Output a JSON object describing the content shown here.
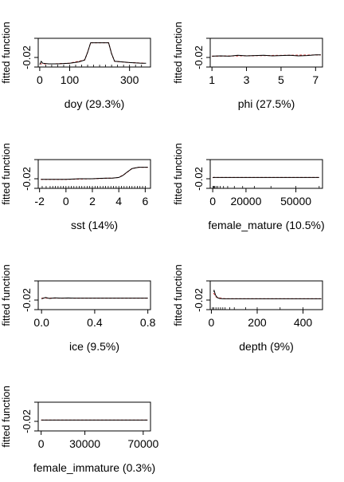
{
  "chart_data": [
    {
      "type": "line",
      "title": "",
      "xlabel": "doy  (29.3%)",
      "ylabel": "fitted function",
      "xlim": [
        -5,
        370
      ],
      "ylim": [
        -0.035,
        0.01
      ],
      "xticks": [
        0,
        100,
        300
      ],
      "yticks": [
        "-0.02"
      ],
      "ytick_values": [
        -0.02
      ],
      "rug": [
        20,
        40,
        60,
        80,
        100,
        120,
        140,
        160,
        180,
        200,
        220,
        240,
        260,
        280,
        300,
        320,
        340
      ],
      "series": [
        {
          "role": "smoothed",
          "color": "#cc3333",
          "dashed": true,
          "x": [
            0,
            50,
            100,
            150,
            160,
            170,
            230,
            240,
            250,
            300,
            350
          ],
          "y": [
            -0.03,
            -0.03,
            -0.029,
            -0.024,
            -0.012,
            0.003,
            0.003,
            -0.014,
            -0.026,
            -0.028,
            -0.029
          ]
        },
        {
          "role": "fitted",
          "color": "#000000",
          "x": [
            0,
            5,
            10,
            30,
            60,
            100,
            130,
            150,
            160,
            170,
            230,
            240,
            250,
            300,
            340,
            355
          ],
          "y": [
            -0.031,
            -0.026,
            -0.029,
            -0.03,
            -0.03,
            -0.029,
            -0.027,
            -0.024,
            -0.012,
            0.003,
            0.003,
            -0.014,
            -0.026,
            -0.028,
            -0.029,
            -0.029
          ]
        }
      ]
    },
    {
      "type": "line",
      "title": "",
      "xlabel": "phi  (27.5%)",
      "ylabel": "fitted function",
      "xlim": [
        0.9,
        7.4
      ],
      "ylim": [
        -0.035,
        0.01
      ],
      "xticks": [
        1,
        3,
        5,
        7
      ],
      "yticks": [
        "-0.02"
      ],
      "ytick_values": [
        -0.02
      ],
      "rug": [],
      "series": [
        {
          "role": "smoothed",
          "color": "#cc3333",
          "dashed": true,
          "x": [
            1,
            7.3
          ],
          "y": [
            -0.018,
            -0.016
          ]
        },
        {
          "role": "fitted",
          "color": "#000000",
          "x": [
            1,
            1.5,
            2,
            2.5,
            3,
            3.5,
            4,
            4.5,
            5,
            5.5,
            6,
            6.5,
            7,
            7.3
          ],
          "y": [
            -0.018,
            -0.0175,
            -0.018,
            -0.0165,
            -0.0175,
            -0.017,
            -0.0165,
            -0.0175,
            -0.017,
            -0.0165,
            -0.0175,
            -0.017,
            -0.016,
            -0.016
          ]
        }
      ]
    },
    {
      "type": "line",
      "title": "",
      "xlabel": "sst  (14%)",
      "ylabel": "fitted function",
      "xlim": [
        -2.1,
        6.4
      ],
      "ylim": [
        -0.035,
        0.01
      ],
      "xticks": [
        -2,
        0,
        2,
        4,
        6
      ],
      "yticks": [
        "-0.02"
      ],
      "ytick_values": [
        -0.02
      ],
      "rug": [
        -1.8,
        -1.5,
        -1.2,
        -1.0,
        -0.8,
        -0.6,
        -0.4,
        -0.2,
        0.0,
        0.2,
        0.4,
        0.6,
        0.8,
        1.0,
        1.2,
        1.4,
        1.6,
        1.8,
        2.0,
        2.2,
        2.4,
        2.6,
        2.8,
        3.0,
        3.2,
        3.4,
        3.6,
        3.8,
        4.0,
        4.2,
        4.4,
        4.6,
        4.8,
        5.0,
        5.2,
        5.4,
        5.6,
        5.8,
        6.0
      ],
      "series": [
        {
          "role": "smoothed",
          "color": "#cc3333",
          "dashed": true,
          "x": [
            -1.9,
            0,
            2,
            3.5,
            4.0,
            4.5,
            5.0,
            5.5,
            6.2
          ],
          "y": [
            -0.021,
            -0.021,
            -0.02,
            -0.019,
            -0.018,
            -0.012,
            -0.004,
            -0.002,
            -0.002
          ]
        },
        {
          "role": "fitted",
          "color": "#000000",
          "x": [
            -1.9,
            -1.0,
            0,
            1,
            2,
            3,
            3.5,
            4.0,
            4.3,
            4.6,
            5.0,
            5.5,
            6.2
          ],
          "y": [
            -0.021,
            -0.021,
            -0.021,
            -0.02,
            -0.02,
            -0.019,
            -0.019,
            -0.018,
            -0.015,
            -0.01,
            -0.004,
            -0.002,
            -0.002
          ]
        }
      ]
    },
    {
      "type": "line",
      "title": "",
      "xlabel": "female_mature  (10.5%)",
      "ylabel": "fitted function",
      "xlim": [
        -1500,
        66000
      ],
      "ylim": [
        -0.035,
        0.01
      ],
      "xticks": [
        0,
        20000,
        50000
      ],
      "yticks": [
        "-0.02"
      ],
      "ytick_values": [
        -0.02
      ],
      "rug": [
        200,
        600,
        1200,
        2000,
        3000,
        4500,
        6500,
        9000,
        13000,
        18000,
        25000,
        35000,
        50000,
        64000
      ],
      "series": [
        {
          "role": "smoothed",
          "color": "#cc3333",
          "dashed": true,
          "x": [
            0,
            64000
          ],
          "y": [
            -0.018,
            -0.018
          ]
        },
        {
          "role": "fitted",
          "color": "#000000",
          "x": [
            0,
            500,
            1500,
            5000,
            64000
          ],
          "y": [
            -0.0185,
            -0.0178,
            -0.018,
            -0.018,
            -0.018
          ]
        }
      ]
    },
    {
      "type": "line",
      "title": "",
      "xlabel": "ice  (9.5%)",
      "ylabel": "fitted function",
      "xlim": [
        -0.025,
        0.82
      ],
      "ylim": [
        -0.035,
        0.01
      ],
      "xticks": [
        0.0,
        0.4,
        0.8
      ],
      "yticks": [
        "-0.02"
      ],
      "ytick_values": [
        -0.02
      ],
      "rug": [],
      "series": [
        {
          "role": "smoothed",
          "color": "#cc3333",
          "dashed": true,
          "x": [
            0,
            0.8
          ],
          "y": [
            -0.017,
            -0.017
          ]
        },
        {
          "role": "fitted",
          "color": "#000000",
          "x": [
            0,
            0.03,
            0.06,
            0.1,
            0.15,
            0.2,
            0.25,
            0.8
          ],
          "y": [
            -0.018,
            -0.016,
            -0.0175,
            -0.0165,
            -0.017,
            -0.0168,
            -0.017,
            -0.017
          ]
        }
      ]
    },
    {
      "type": "line",
      "title": "",
      "xlabel": "depth  (9%)",
      "ylabel": "fitted function",
      "xlim": [
        -5,
        485
      ],
      "ylim": [
        -0.035,
        0.01
      ],
      "xticks": [
        0,
        200,
        400
      ],
      "yticks": [
        "-0.02"
      ],
      "ytick_values": [
        -0.02
      ],
      "rug": [
        5,
        10,
        20,
        30,
        40,
        50,
        60,
        80,
        100,
        150,
        200,
        300,
        400
      ],
      "series": [
        {
          "role": "smoothed",
          "color": "#cc3333",
          "dashed": true,
          "x": [
            10,
            20,
            40,
            60,
            480
          ],
          "y": [
            -0.009,
            -0.015,
            -0.017,
            -0.018,
            -0.018
          ]
        },
        {
          "role": "fitted",
          "color": "#000000",
          "x": [
            10,
            12,
            18,
            25,
            35,
            50,
            70,
            100,
            480
          ],
          "y": [
            -0.007,
            -0.005,
            -0.012,
            -0.016,
            -0.0175,
            -0.018,
            -0.018,
            -0.018,
            -0.018
          ]
        }
      ]
    },
    {
      "type": "line",
      "title": "",
      "xlabel": "female_immature  (0.3%)",
      "ylabel": "fitted function",
      "xlim": [
        -2000,
        75000
      ],
      "ylim": [
        -0.035,
        0.01
      ],
      "xticks": [
        0,
        30000,
        70000
      ],
      "yticks": [
        "-0.02"
      ],
      "ytick_values": [
        -0.02
      ],
      "rug": [],
      "series": [
        {
          "role": "smoothed",
          "color": "#cc3333",
          "dashed": true,
          "x": [
            0,
            73000
          ],
          "y": [
            -0.018,
            -0.018
          ]
        },
        {
          "role": "fitted",
          "color": "#000000",
          "x": [
            0,
            73000
          ],
          "y": [
            -0.018,
            -0.018
          ]
        }
      ]
    }
  ]
}
